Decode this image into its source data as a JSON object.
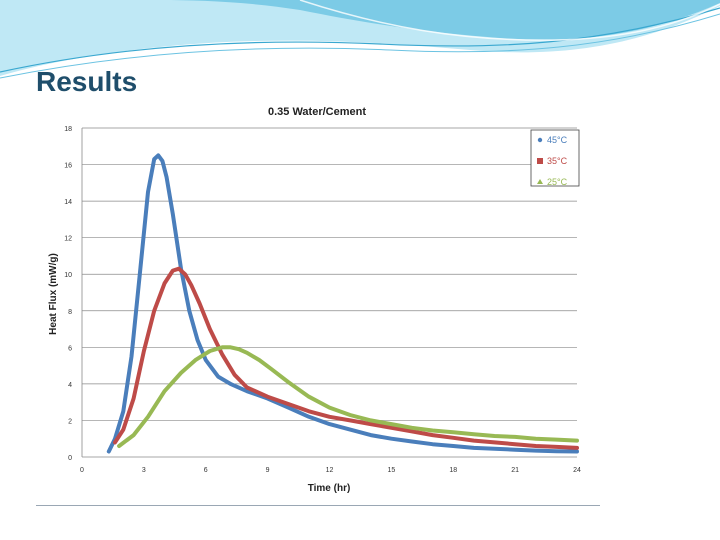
{
  "slide": {
    "title": "Results"
  },
  "colors": {
    "accent_light": "#8fd3ea",
    "accent_dark": "#2a9dc8",
    "title": "#1f4e6b"
  },
  "chart_data": {
    "type": "line",
    "title": "0.35 Water/Cement",
    "xlabel": "Time (hr)",
    "ylabel": "Heat Flux (mW/g)",
    "xlim": [
      0,
      24
    ],
    "ylim": [
      0,
      18
    ],
    "xticks": [
      0,
      3,
      6,
      9,
      12,
      15,
      18,
      21,
      24
    ],
    "yticks": [
      0,
      2,
      4,
      6,
      8,
      10,
      12,
      14,
      16,
      18
    ],
    "grid": "horizontal",
    "legend": "top-right",
    "series": [
      {
        "name": "45°C",
        "color": "#4a7ebb",
        "x": [
          1.3,
          1.6,
          2.0,
          2.4,
          2.8,
          3.2,
          3.5,
          3.7,
          3.9,
          4.1,
          4.4,
          4.8,
          5.2,
          5.6,
          6.0,
          6.6,
          7.2,
          8.0,
          9.0,
          10.0,
          11.0,
          12.0,
          13.0,
          14.0,
          15.0,
          16.0,
          17.0,
          18.0,
          19.0,
          20.0,
          21.0,
          22.0,
          23.0,
          24.0
        ],
        "y": [
          0.3,
          1.0,
          2.5,
          5.5,
          10.0,
          14.5,
          16.3,
          16.5,
          16.2,
          15.3,
          13.3,
          10.3,
          8.0,
          6.4,
          5.3,
          4.4,
          4.0,
          3.6,
          3.2,
          2.7,
          2.2,
          1.8,
          1.5,
          1.2,
          1.0,
          0.85,
          0.7,
          0.6,
          0.5,
          0.45,
          0.4,
          0.35,
          0.32,
          0.3
        ]
      },
      {
        "name": "35°C",
        "color": "#be4b48",
        "x": [
          1.6,
          2.0,
          2.5,
          3.0,
          3.5,
          4.0,
          4.4,
          4.7,
          5.0,
          5.3,
          5.7,
          6.2,
          6.8,
          7.4,
          8.0,
          9.0,
          10.0,
          11.0,
          12.0,
          13.0,
          14.0,
          15.0,
          16.0,
          17.0,
          18.0,
          19.0,
          20.0,
          21.0,
          22.0,
          23.0,
          24.0
        ],
        "y": [
          0.8,
          1.5,
          3.2,
          5.8,
          8.0,
          9.5,
          10.2,
          10.3,
          10.0,
          9.4,
          8.4,
          7.0,
          5.6,
          4.5,
          3.8,
          3.3,
          2.9,
          2.5,
          2.2,
          2.0,
          1.8,
          1.6,
          1.4,
          1.2,
          1.05,
          0.9,
          0.8,
          0.7,
          0.6,
          0.55,
          0.5
        ]
      },
      {
        "name": "25°C",
        "color": "#98b954",
        "x": [
          1.8,
          2.5,
          3.2,
          4.0,
          4.8,
          5.5,
          6.2,
          6.8,
          7.2,
          7.6,
          8.0,
          8.6,
          9.2,
          10.0,
          11.0,
          12.0,
          13.0,
          14.0,
          15.0,
          16.0,
          17.0,
          18.0,
          19.0,
          20.0,
          21.0,
          22.0,
          23.0,
          24.0
        ],
        "y": [
          0.6,
          1.2,
          2.2,
          3.6,
          4.6,
          5.3,
          5.8,
          6.0,
          6.0,
          5.9,
          5.7,
          5.3,
          4.8,
          4.1,
          3.3,
          2.7,
          2.3,
          2.0,
          1.8,
          1.6,
          1.45,
          1.35,
          1.25,
          1.15,
          1.1,
          1.0,
          0.95,
          0.9
        ]
      }
    ]
  }
}
